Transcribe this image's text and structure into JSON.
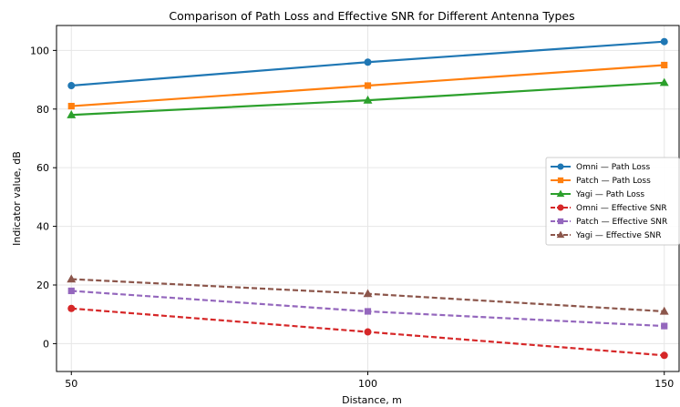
{
  "chart_data": {
    "type": "line",
    "title": "Comparison of Path Loss and Effective SNR for Different Antenna Types",
    "xlabel": "Distance, m",
    "ylabel": "Indicator value, dB",
    "x": [
      50,
      100,
      150
    ],
    "x_ticks": [
      "50",
      "100",
      "150"
    ],
    "y_ticks": [
      0,
      20,
      40,
      60,
      80,
      100
    ],
    "xlim": [
      47.5,
      152.5
    ],
    "ylim": [
      -9.5,
      108.5
    ],
    "grid": true,
    "legend_position": "right",
    "series": [
      {
        "name": "Omni — Path Loss",
        "values": [
          88,
          96,
          103
        ],
        "color": "#1f77b4",
        "marker": "circle",
        "dashed": false
      },
      {
        "name": "Patch — Path Loss",
        "values": [
          81,
          88,
          95
        ],
        "color": "#ff7f0e",
        "marker": "square",
        "dashed": false
      },
      {
        "name": "Yagi — Path Loss",
        "values": [
          78,
          83,
          89
        ],
        "color": "#2ca02c",
        "marker": "triangle",
        "dashed": false
      },
      {
        "name": "Omni — Effective SNR",
        "values": [
          12,
          4,
          -4
        ],
        "color": "#d62728",
        "marker": "circle",
        "dashed": true
      },
      {
        "name": "Patch — Effective SNR",
        "values": [
          18,
          11,
          6
        ],
        "color": "#9467bd",
        "marker": "square",
        "dashed": true
      },
      {
        "name": "Yagi — Effective SNR",
        "values": [
          22,
          17,
          11
        ],
        "color": "#8c564b",
        "marker": "triangle",
        "dashed": true
      }
    ]
  }
}
